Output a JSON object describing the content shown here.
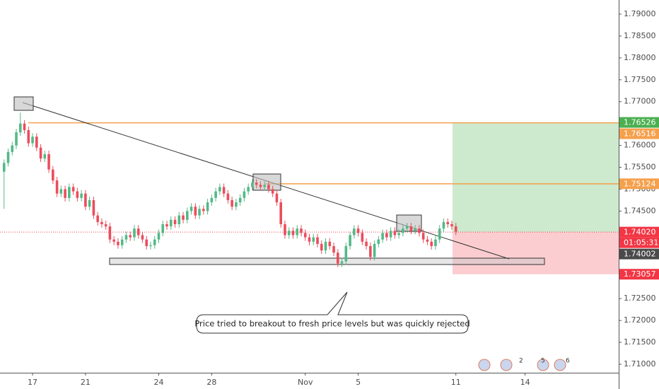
{
  "chart_data": {
    "type": "candlestick",
    "up_color": "#53b987",
    "down_color": "#eb4d5c",
    "xlim": [
      -1,
      151
    ],
    "ylim": [
      1.70806,
      1.79323
    ],
    "xticks": [
      {
        "value": 7,
        "label": "17"
      },
      {
        "value": 20,
        "label": "21"
      },
      {
        "value": 38,
        "label": "24"
      },
      {
        "value": 51,
        "label": "28"
      },
      {
        "value": 74,
        "label": "Nov"
      },
      {
        "value": 87,
        "label": "5"
      },
      {
        "value": 111,
        "label": "11"
      },
      {
        "value": 128,
        "label": "14"
      }
    ],
    "yticks": [
      {
        "value": 1.71,
        "label": "1.71000"
      },
      {
        "value": 1.715,
        "label": "1.71500"
      },
      {
        "value": 1.72,
        "label": "1.72000"
      },
      {
        "value": 1.725,
        "label": "1.72500"
      },
      {
        "value": 1.73,
        "label": "1.73000"
      },
      {
        "value": 1.735,
        "label": "1.73500"
      },
      {
        "value": 1.74,
        "label": "1.74000"
      },
      {
        "value": 1.745,
        "label": "1.74500"
      },
      {
        "value": 1.75,
        "label": "1.75000"
      },
      {
        "value": 1.755,
        "label": "1.75500"
      },
      {
        "value": 1.76,
        "label": "1.76000"
      },
      {
        "value": 1.765,
        "label": "1.76500"
      },
      {
        "value": 1.77,
        "label": "1.77000"
      },
      {
        "value": 1.775,
        "label": "1.77500"
      },
      {
        "value": 1.78,
        "label": "1.78000"
      },
      {
        "value": 1.785,
        "label": "1.78500"
      },
      {
        "value": 1.79,
        "label": "1.79000"
      }
    ],
    "open": [
      1.754,
      1.756,
      1.7585,
      1.76,
      1.763,
      1.765,
      1.7635,
      1.7605,
      1.762,
      1.7595,
      1.757,
      1.758,
      1.7545,
      1.752,
      1.749,
      1.75,
      1.748,
      1.7505,
      1.7495,
      1.748,
      1.749,
      1.746,
      1.7475,
      1.744,
      1.7425,
      1.742,
      1.7415,
      1.7385,
      1.738,
      1.7372,
      1.7385,
      1.7395,
      1.739,
      1.741,
      1.7395,
      1.7385,
      1.737,
      1.7372,
      1.7385,
      1.74,
      1.742,
      1.7415,
      1.743,
      1.742,
      1.744,
      1.743,
      1.745,
      1.746,
      1.744,
      1.7455,
      1.745,
      1.747,
      1.748,
      1.7495,
      1.7505,
      1.749,
      1.7475,
      1.746,
      1.747,
      1.748,
      1.7495,
      1.7505,
      1.7515,
      1.751,
      1.7505,
      1.751,
      1.75,
      1.749,
      1.747,
      1.742,
      1.7395,
      1.7405,
      1.7395,
      1.741,
      1.74,
      1.739,
      1.738,
      1.739,
      1.7375,
      1.736,
      1.738,
      1.737,
      1.7355,
      1.733,
      1.7335,
      1.737,
      1.7395,
      1.741,
      1.74,
      1.738,
      1.737,
      1.7345,
      1.7375,
      1.7385,
      1.74,
      1.739,
      1.7405,
      1.7395,
      1.74,
      1.741,
      1.7415,
      1.7405,
      1.741,
      1.74,
      1.7385,
      1.738,
      1.737,
      1.7385,
      1.741,
      1.7425,
      1.742,
      1.7415
    ],
    "high": [
      1.7568,
      1.7593,
      1.7608,
      1.7638,
      1.7675,
      1.7658,
      1.7643,
      1.7628,
      1.7628,
      1.7603,
      1.7588,
      1.7588,
      1.7553,
      1.7528,
      1.7508,
      1.7508,
      1.7513,
      1.7513,
      1.7503,
      1.7498,
      1.7498,
      1.7483,
      1.7483,
      1.7448,
      1.7433,
      1.7428,
      1.7423,
      1.7393,
      1.7388,
      1.7393,
      1.7403,
      1.7403,
      1.7418,
      1.7418,
      1.7403,
      1.7393,
      1.738,
      1.7393,
      1.7408,
      1.7428,
      1.7428,
      1.7438,
      1.7438,
      1.7448,
      1.7448,
      1.7458,
      1.7468,
      1.7468,
      1.7463,
      1.7463,
      1.7478,
      1.7488,
      1.7503,
      1.7513,
      1.7513,
      1.7498,
      1.7483,
      1.7478,
      1.7488,
      1.7503,
      1.7513,
      1.7523,
      1.7523,
      1.7518,
      1.7518,
      1.7518,
      1.7508,
      1.7498,
      1.7478,
      1.7428,
      1.7413,
      1.7413,
      1.7418,
      1.7418,
      1.7408,
      1.7398,
      1.7398,
      1.7398,
      1.7383,
      1.7388,
      1.7388,
      1.7378,
      1.7363,
      1.7343,
      1.7378,
      1.7403,
      1.7418,
      1.7418,
      1.7408,
      1.7388,
      1.7378,
      1.7383,
      1.7393,
      1.7408,
      1.7408,
      1.7413,
      1.7413,
      1.7408,
      1.7418,
      1.7423,
      1.7423,
      1.7418,
      1.7418,
      1.7408,
      1.7393,
      1.7388,
      1.7393,
      1.7418,
      1.7433,
      1.7433,
      1.7428,
      1.7423
    ],
    "low": [
      1.7455,
      1.7552,
      1.7577,
      1.7592,
      1.7622,
      1.7627,
      1.7597,
      1.7597,
      1.7587,
      1.7562,
      1.7562,
      1.7537,
      1.7512,
      1.7482,
      1.7482,
      1.7472,
      1.7472,
      1.7487,
      1.7472,
      1.7472,
      1.7452,
      1.7452,
      1.7432,
      1.7417,
      1.7412,
      1.7407,
      1.7377,
      1.7372,
      1.7364,
      1.7364,
      1.7377,
      1.7382,
      1.7382,
      1.7387,
      1.7377,
      1.7362,
      1.7362,
      1.7364,
      1.7377,
      1.7392,
      1.7407,
      1.7407,
      1.7412,
      1.7412,
      1.7422,
      1.7422,
      1.7442,
      1.7432,
      1.7432,
      1.7442,
      1.7442,
      1.7462,
      1.7472,
      1.7487,
      1.7482,
      1.7467,
      1.7452,
      1.7452,
      1.7462,
      1.7472,
      1.7487,
      1.7497,
      1.7502,
      1.7497,
      1.7497,
      1.7492,
      1.7482,
      1.7462,
      1.7412,
      1.7387,
      1.7387,
      1.7387,
      1.7387,
      1.7392,
      1.7382,
      1.7372,
      1.7372,
      1.7367,
      1.7352,
      1.7352,
      1.7362,
      1.7347,
      1.7322,
      1.7322,
      1.7327,
      1.7362,
      1.7387,
      1.7392,
      1.7372,
      1.7362,
      1.7337,
      1.7337,
      1.7367,
      1.7377,
      1.7382,
      1.7382,
      1.7387,
      1.7387,
      1.7392,
      1.7402,
      1.7397,
      1.7397,
      1.7392,
      1.7377,
      1.7372,
      1.7362,
      1.7362,
      1.7377,
      1.7402,
      1.7412,
      1.7407,
      1.7395
    ],
    "close": [
      1.756,
      1.7585,
      1.76,
      1.763,
      1.765,
      1.7635,
      1.7605,
      1.762,
      1.7595,
      1.757,
      1.758,
      1.7545,
      1.752,
      1.749,
      1.75,
      1.748,
      1.7505,
      1.7495,
      1.748,
      1.749,
      1.746,
      1.7475,
      1.744,
      1.7425,
      1.742,
      1.7415,
      1.7385,
      1.738,
      1.7372,
      1.7385,
      1.7395,
      1.739,
      1.741,
      1.7395,
      1.7385,
      1.737,
      1.7372,
      1.7385,
      1.74,
      1.742,
      1.7415,
      1.743,
      1.742,
      1.744,
      1.743,
      1.745,
      1.746,
      1.744,
      1.7455,
      1.745,
      1.747,
      1.748,
      1.7495,
      1.7505,
      1.749,
      1.7475,
      1.746,
      1.747,
      1.748,
      1.7495,
      1.7505,
      1.7515,
      1.751,
      1.7505,
      1.751,
      1.75,
      1.749,
      1.747,
      1.742,
      1.7395,
      1.7405,
      1.7395,
      1.741,
      1.74,
      1.739,
      1.738,
      1.739,
      1.7375,
      1.736,
      1.738,
      1.737,
      1.7355,
      1.733,
      1.7335,
      1.737,
      1.7395,
      1.741,
      1.74,
      1.738,
      1.737,
      1.7345,
      1.7375,
      1.7385,
      1.74,
      1.739,
      1.7405,
      1.7395,
      1.74,
      1.741,
      1.7415,
      1.7405,
      1.741,
      1.74,
      1.7385,
      1.738,
      1.737,
      1.7385,
      1.741,
      1.7425,
      1.742,
      1.7415,
      1.7403
    ],
    "lines": [
      {
        "value": 1.76516,
        "label": "1.76516",
        "color": "#f5a04c"
      },
      {
        "value": 1.75124,
        "label": "1.75124",
        "color": "#f5a04c"
      }
    ],
    "position": {
      "target": {
        "value": 1.76526,
        "label": "1.76526",
        "color": "#4caf50"
      },
      "entry": {
        "value": 1.7402,
        "label": "1.74020",
        "color": "#f23645"
      },
      "stop": {
        "value": 1.73057,
        "label": "1.73057",
        "color": "#f23645"
      },
      "countdown": "01:05:31"
    },
    "last_price": {
      "value": 1.74002,
      "label": "1.74002",
      "color": "#4a4a4a"
    },
    "annotation": "Price tried to breakout to fresh price levels but was quickly rejected",
    "events": [
      2,
      5,
      6
    ]
  }
}
